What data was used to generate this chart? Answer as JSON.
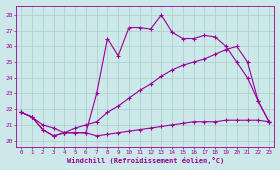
{
  "xlabel": "Windchill (Refroidissement éolien,°C)",
  "bg_color": "#cde8e8",
  "grid_color": "#aacccc",
  "line_color": "#990099",
  "xlim": [
    -0.5,
    23.5
  ],
  "ylim": [
    19.6,
    28.6
  ],
  "yticks": [
    20,
    21,
    22,
    23,
    24,
    25,
    26,
    27,
    28
  ],
  "xticks": [
    0,
    1,
    2,
    3,
    4,
    5,
    6,
    7,
    8,
    9,
    10,
    11,
    12,
    13,
    14,
    15,
    16,
    17,
    18,
    19,
    20,
    21,
    22,
    23
  ],
  "line1_x": [
    0,
    1,
    2,
    3,
    4,
    5,
    6,
    7,
    8,
    9,
    10,
    11,
    12,
    13,
    14,
    15,
    16,
    17,
    18,
    19,
    20,
    21,
    22,
    23
  ],
  "line1_y": [
    21.8,
    21.5,
    20.7,
    20.3,
    20.5,
    20.5,
    20.5,
    20.3,
    20.4,
    20.5,
    20.6,
    20.7,
    20.8,
    20.9,
    21.0,
    21.1,
    21.2,
    21.2,
    21.2,
    21.3,
    21.3,
    21.3,
    21.3,
    21.2
  ],
  "line2_x": [
    0,
    1,
    2,
    3,
    4,
    5,
    6,
    7,
    8,
    9,
    10,
    11,
    12,
    13,
    14,
    15,
    16,
    17,
    18,
    19,
    20,
    21,
    22,
    23
  ],
  "line2_y": [
    21.8,
    21.5,
    20.7,
    20.3,
    20.5,
    20.5,
    20.5,
    23.0,
    26.5,
    25.4,
    27.2,
    27.2,
    27.1,
    28.0,
    26.9,
    26.5,
    26.5,
    26.7,
    26.6,
    26.0,
    25.0,
    24.0,
    22.5,
    21.2
  ],
  "line3_x": [
    0,
    1,
    2,
    3,
    4,
    5,
    6,
    7,
    8,
    9,
    10,
    11,
    12,
    13,
    14,
    15,
    16,
    17,
    18,
    19,
    20,
    21,
    22,
    23
  ],
  "line3_y": [
    21.8,
    21.5,
    21.0,
    20.8,
    20.5,
    20.8,
    21.0,
    21.2,
    21.8,
    22.2,
    22.7,
    23.2,
    23.6,
    24.1,
    24.5,
    24.8,
    25.0,
    25.2,
    25.5,
    25.8,
    26.0,
    25.0,
    22.5,
    21.2
  ]
}
